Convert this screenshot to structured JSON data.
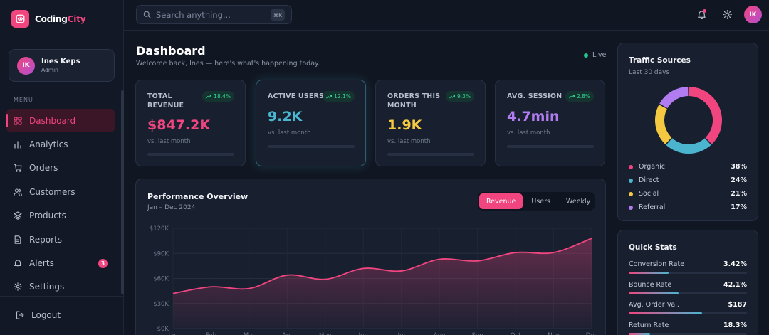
{
  "brand": {
    "name_main": "Coding",
    "name_accent": "City"
  },
  "user": {
    "initials": "IK",
    "name": "Ines Keps",
    "role": "Admin"
  },
  "sidebar": {
    "menu_label": "MENU",
    "items": [
      {
        "label": "Dashboard",
        "icon": "dashboard-icon",
        "active": true
      },
      {
        "label": "Analytics",
        "icon": "bar-chart-icon"
      },
      {
        "label": "Orders",
        "icon": "cart-icon"
      },
      {
        "label": "Customers",
        "icon": "users-icon"
      },
      {
        "label": "Products",
        "icon": "layers-icon"
      },
      {
        "label": "Reports",
        "icon": "document-icon"
      },
      {
        "label": "Alerts",
        "icon": "bell-icon",
        "badge": "3"
      },
      {
        "label": "Settings",
        "icon": "gear-icon"
      }
    ],
    "logout_label": "Logout"
  },
  "topbar": {
    "search_placeholder": "Search anything...",
    "shortcut": "⌘K",
    "avatar_initials": "IK"
  },
  "header": {
    "title": "Dashboard",
    "subtitle": "Welcome back, Ines — here's what's happening today.",
    "status": "Live"
  },
  "kpis": [
    {
      "label": "TOTAL REVENUE",
      "delta": "18.4%",
      "value": "$847.2K",
      "note": "vs. last month",
      "color": "#f0457f"
    },
    {
      "label": "ACTIVE USERS",
      "delta": "12.1%",
      "value": "9.2K",
      "note": "vs. last month",
      "color": "#4bb5d0"
    },
    {
      "label": "ORDERS THIS MONTH",
      "delta": "9.3%",
      "value": "1.9K",
      "note": "vs. last month",
      "color": "#f5c842"
    },
    {
      "label": "AVG. SESSION",
      "delta": "2.8%",
      "value": "4.7min",
      "note": "vs. last month",
      "color": "#b07cf0"
    }
  ],
  "performance": {
    "title": "Performance Overview",
    "subtitle": "Jan – Dec 2024",
    "tabs": [
      {
        "label": "Revenue",
        "active": true
      },
      {
        "label": "Users"
      },
      {
        "label": "Weekly"
      }
    ]
  },
  "chart_data": {
    "type": "area",
    "categories": [
      "Jan",
      "Feb",
      "Mar",
      "Apr",
      "May",
      "Jun",
      "Jul",
      "Aug",
      "Sep",
      "Oct",
      "Nov",
      "Dec"
    ],
    "series": [
      {
        "values": [
          42,
          50,
          48,
          64,
          59,
          72,
          69,
          83,
          81,
          91,
          91,
          108
        ]
      }
    ],
    "y_ticks": [
      "$0K",
      "$30K",
      "$60K",
      "$90K",
      "$120K"
    ],
    "ylim": [
      0,
      120
    ],
    "line_color": "#f0457f",
    "grid": true
  },
  "traffic": {
    "title": "Traffic Sources",
    "subtitle": "Last 30 days",
    "sources": [
      {
        "label": "Organic",
        "value": "38%",
        "pct": 38,
        "color": "#f0457f"
      },
      {
        "label": "Direct",
        "value": "24%",
        "pct": 24,
        "color": "#4bb5d0"
      },
      {
        "label": "Social",
        "value": "21%",
        "pct": 21,
        "color": "#f5c842"
      },
      {
        "label": "Referral",
        "value": "17%",
        "pct": 17,
        "color": "#b07cf0"
      }
    ]
  },
  "quick_stats": {
    "title": "Quick Stats",
    "items": [
      {
        "label": "Conversion Rate",
        "value": "3.42%",
        "level": 0.34
      },
      {
        "label": "Bounce Rate",
        "value": "42.1%",
        "level": 0.42
      },
      {
        "label": "Avg. Order Val.",
        "value": "$187",
        "level": 0.62
      },
      {
        "label": "Return Rate",
        "value": "18.3%",
        "level": 0.18
      }
    ]
  }
}
